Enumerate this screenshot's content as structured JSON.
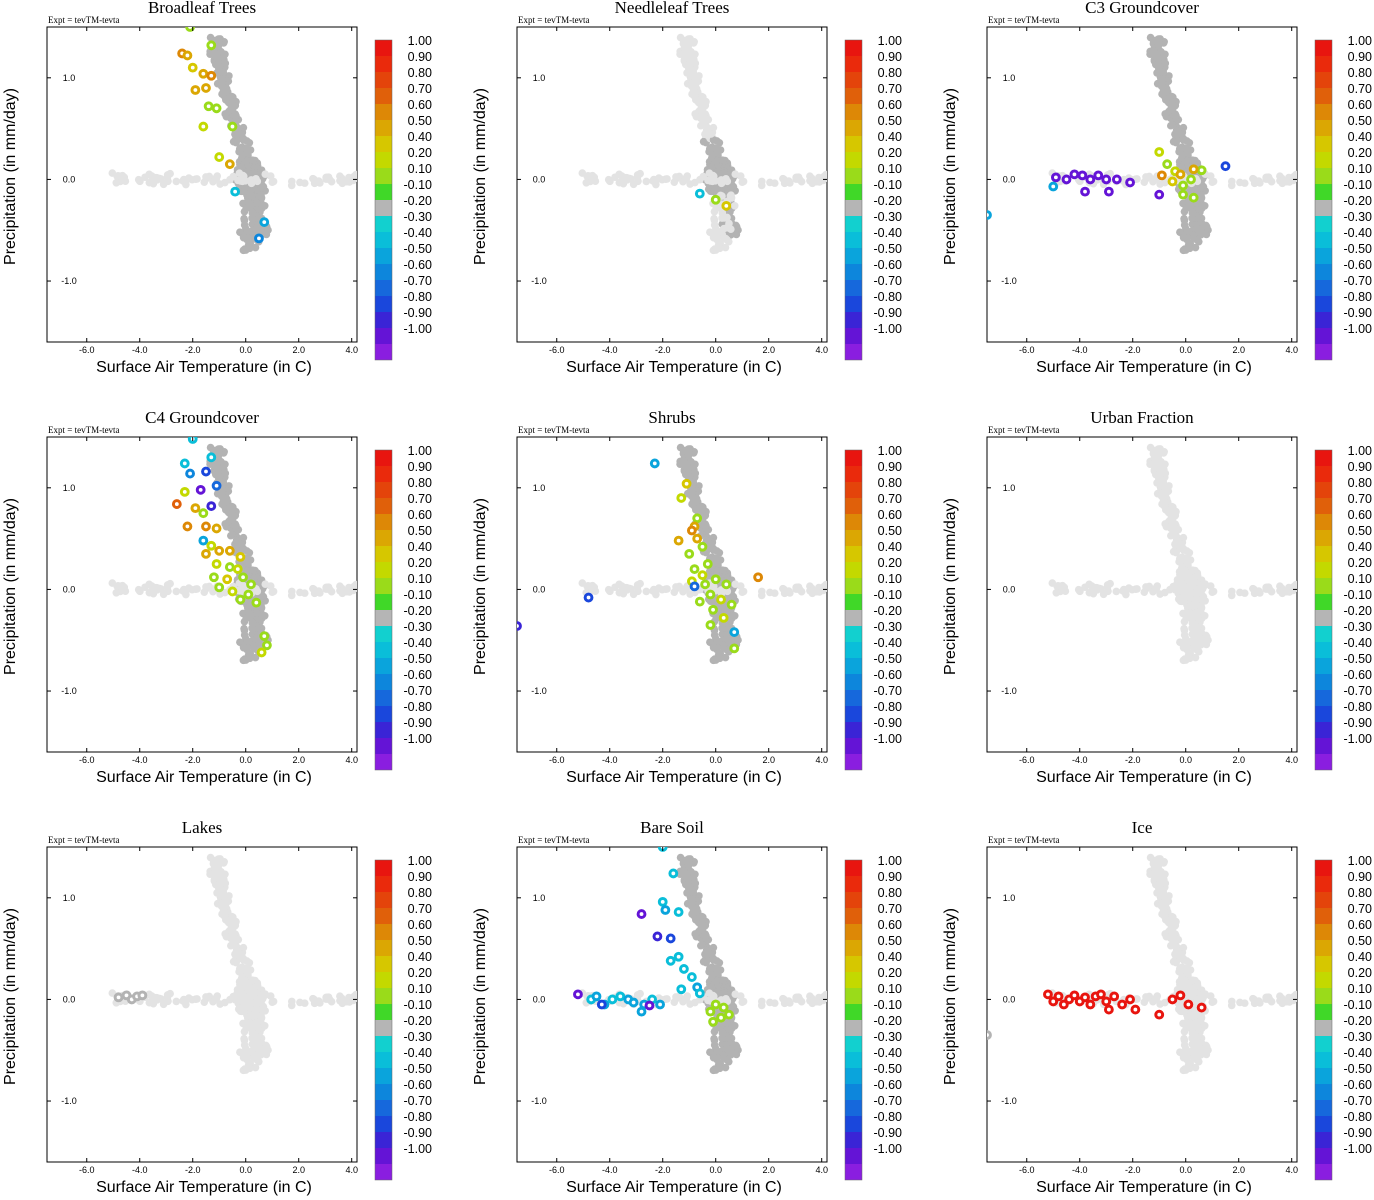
{
  "figure": {
    "expt_label": "Expt = tevTM-tevta",
    "xlabel": "Surface Air Temperature (in C)",
    "ylabel": "Precipitation (in mm/day)",
    "x_ticks": [
      "-6.0",
      "-4.0",
      "-2.0",
      "0.0",
      "2.0",
      "4.0"
    ],
    "y_ticks": [
      "1.0",
      "0.0",
      "-1.0"
    ]
  },
  "colorbar": {
    "labels": [
      "1.00",
      "0.90",
      "0.80",
      "0.70",
      "0.60",
      "0.50",
      "0.40",
      "0.20",
      "0.10",
      "-0.10",
      "-0.20",
      "-0.30",
      "-0.40",
      "-0.50",
      "-0.60",
      "-0.70",
      "-0.80",
      "-0.90",
      "-1.00"
    ],
    "colors": [
      "#e8150f",
      "#ea2a0c",
      "#e4440b",
      "#e0600a",
      "#dd8806",
      "#dba703",
      "#d6c700",
      "#c3d900",
      "#9adb1a",
      "#40d828",
      "#b5b5b5",
      "#12d0cf",
      "#0abed9",
      "#0aa4dc",
      "#0d86dc",
      "#1668dc",
      "#1a47dc",
      "#3a24d6",
      "#6414d6",
      "#8a1ee0"
    ]
  },
  "colors": {
    "background_points": "#e3e3e3",
    "neutral_points": "#b3b3b3"
  },
  "chart_data": [
    {
      "type": "scatter",
      "title": "Broadleaf Trees",
      "xlim": [
        -7.5,
        4.2
      ],
      "ylim": [
        -1.6,
        1.5
      ],
      "highlighted": [
        {
          "x": -2.1,
          "y": 1.5,
          "value": 0.15
        },
        {
          "x": -2.4,
          "y": 1.24,
          "value": 0.6
        },
        {
          "x": -2.2,
          "y": 1.22,
          "value": 0.45
        },
        {
          "x": -1.3,
          "y": 1.32,
          "value": 0.15
        },
        {
          "x": -2.0,
          "y": 1.1,
          "value": 0.4
        },
        {
          "x": -1.6,
          "y": 1.04,
          "value": 0.5
        },
        {
          "x": -1.3,
          "y": 1.02,
          "value": 0.6
        },
        {
          "x": -1.9,
          "y": 0.88,
          "value": 0.45
        },
        {
          "x": -1.5,
          "y": 0.9,
          "value": 0.45
        },
        {
          "x": -1.4,
          "y": 0.72,
          "value": 0.2
        },
        {
          "x": -1.1,
          "y": 0.7,
          "value": 0.15
        },
        {
          "x": -1.6,
          "y": 0.52,
          "value": 0.3
        },
        {
          "x": -0.5,
          "y": 0.52,
          "value": 0.15
        },
        {
          "x": -1.0,
          "y": 0.22,
          "value": 0.25
        },
        {
          "x": -0.6,
          "y": 0.15,
          "value": 0.45
        },
        {
          "x": -0.4,
          "y": -0.12,
          "value": -0.25
        },
        {
          "x": 0.7,
          "y": -0.42,
          "value": -0.35
        },
        {
          "x": 0.5,
          "y": -0.58,
          "value": -0.45
        }
      ]
    },
    {
      "type": "scatter",
      "title": "Needleleaf Trees",
      "xlim": [
        -7.5,
        4.2
      ],
      "ylim": [
        -1.6,
        1.5
      ],
      "highlighted": [
        {
          "x": -0.6,
          "y": -0.14,
          "value": -0.25
        },
        {
          "x": 0.0,
          "y": -0.2,
          "value": 0.15
        },
        {
          "x": 0.4,
          "y": -0.26,
          "value": 0.4
        }
      ]
    },
    {
      "type": "scatter",
      "title": "C3 Groundcover",
      "xlim": [
        -7.5,
        4.2
      ],
      "ylim": [
        -1.6,
        1.5
      ],
      "highlighted": [
        {
          "x": -4.9,
          "y": 0.02,
          "value": -0.85
        },
        {
          "x": -4.5,
          "y": 0.0,
          "value": -0.85
        },
        {
          "x": -4.2,
          "y": 0.05,
          "value": -0.85
        },
        {
          "x": -3.9,
          "y": 0.04,
          "value": -0.85
        },
        {
          "x": -3.6,
          "y": 0.0,
          "value": -0.85
        },
        {
          "x": -3.3,
          "y": 0.04,
          "value": -0.85
        },
        {
          "x": -3.0,
          "y": 0.0,
          "value": -0.85
        },
        {
          "x": -2.6,
          "y": 0.0,
          "value": -0.85
        },
        {
          "x": -2.1,
          "y": -0.03,
          "value": -0.85
        },
        {
          "x": -3.8,
          "y": -0.12,
          "value": -0.85
        },
        {
          "x": -2.9,
          "y": -0.12,
          "value": -0.85
        },
        {
          "x": -5.0,
          "y": -0.07,
          "value": -0.3
        },
        {
          "x": -7.5,
          "y": -0.35,
          "value": -0.35
        },
        {
          "x": -1.0,
          "y": 0.27,
          "value": 0.3
        },
        {
          "x": -0.7,
          "y": 0.15,
          "value": 0.15
        },
        {
          "x": -0.9,
          "y": 0.04,
          "value": 0.55
        },
        {
          "x": -0.4,
          "y": 0.08,
          "value": 0.25
        },
        {
          "x": -0.2,
          "y": 0.05,
          "value": 0.45
        },
        {
          "x": -0.5,
          "y": -0.02,
          "value": 0.35
        },
        {
          "x": -0.1,
          "y": -0.06,
          "value": 0.2
        },
        {
          "x": 0.2,
          "y": 0.0,
          "value": 0.15
        },
        {
          "x": 0.6,
          "y": 0.09,
          "value": 0.15
        },
        {
          "x": 1.5,
          "y": 0.13,
          "value": -0.6
        },
        {
          "x": -0.1,
          "y": -0.15,
          "value": 0.15
        },
        {
          "x": -1.0,
          "y": -0.15,
          "value": -0.85
        },
        {
          "x": 0.3,
          "y": -0.18,
          "value": 0.15
        },
        {
          "x": 0.3,
          "y": 0.1,
          "value": 0.5
        }
      ]
    },
    {
      "type": "scatter",
      "title": "C4 Groundcover",
      "xlim": [
        -7.5,
        4.2
      ],
      "ylim": [
        -1.6,
        1.5
      ],
      "highlighted": [
        {
          "x": -2.0,
          "y": 1.48,
          "value": -0.25
        },
        {
          "x": -2.3,
          "y": 1.24,
          "value": -0.25
        },
        {
          "x": -2.1,
          "y": 1.14,
          "value": -0.4
        },
        {
          "x": -1.3,
          "y": 1.3,
          "value": -0.25
        },
        {
          "x": -1.5,
          "y": 1.16,
          "value": -0.6
        },
        {
          "x": -1.1,
          "y": 1.02,
          "value": -0.5
        },
        {
          "x": -2.3,
          "y": 0.96,
          "value": 0.3
        },
        {
          "x": -1.7,
          "y": 0.98,
          "value": -0.8
        },
        {
          "x": -1.3,
          "y": 0.82,
          "value": -0.7
        },
        {
          "x": -2.6,
          "y": 0.84,
          "value": 0.65
        },
        {
          "x": -1.9,
          "y": 0.8,
          "value": 0.45
        },
        {
          "x": -1.6,
          "y": 0.75,
          "value": 0.15
        },
        {
          "x": -2.2,
          "y": 0.62,
          "value": 0.6
        },
        {
          "x": -1.5,
          "y": 0.62,
          "value": 0.6
        },
        {
          "x": -1.1,
          "y": 0.6,
          "value": 0.45
        },
        {
          "x": -1.6,
          "y": 0.48,
          "value": -0.3
        },
        {
          "x": -1.3,
          "y": 0.43,
          "value": 0.3
        },
        {
          "x": -1.0,
          "y": 0.38,
          "value": 0.45
        },
        {
          "x": -0.6,
          "y": 0.38,
          "value": 0.45
        },
        {
          "x": -1.5,
          "y": 0.35,
          "value": 0.45
        },
        {
          "x": -0.2,
          "y": 0.32,
          "value": 0.4
        },
        {
          "x": -1.1,
          "y": 0.25,
          "value": 0.3
        },
        {
          "x": -0.6,
          "y": 0.22,
          "value": 0.15
        },
        {
          "x": -0.3,
          "y": 0.2,
          "value": 0.3
        },
        {
          "x": -1.2,
          "y": 0.12,
          "value": 0.15
        },
        {
          "x": -0.7,
          "y": 0.1,
          "value": 0.35
        },
        {
          "x": -0.1,
          "y": 0.12,
          "value": 0.15
        },
        {
          "x": 0.2,
          "y": 0.05,
          "value": 0.15
        },
        {
          "x": -1.0,
          "y": 0.02,
          "value": 0.15
        },
        {
          "x": -0.5,
          "y": -0.02,
          "value": 0.3
        },
        {
          "x": 0.1,
          "y": -0.05,
          "value": 0.15
        },
        {
          "x": 0.4,
          "y": -0.13,
          "value": 0.15
        },
        {
          "x": -0.2,
          "y": -0.1,
          "value": 0.2
        },
        {
          "x": 0.7,
          "y": -0.46,
          "value": 0.15
        },
        {
          "x": 0.8,
          "y": -0.55,
          "value": 0.15
        },
        {
          "x": 0.6,
          "y": -0.62,
          "value": 0.3
        }
      ]
    },
    {
      "type": "scatter",
      "title": "Shrubs",
      "xlim": [
        -7.5,
        4.2
      ],
      "ylim": [
        -1.6,
        1.5
      ],
      "highlighted": [
        {
          "x": -2.3,
          "y": 1.24,
          "value": -0.3
        },
        {
          "x": -1.1,
          "y": 1.04,
          "value": 0.4
        },
        {
          "x": -1.3,
          "y": 0.9,
          "value": 0.3
        },
        {
          "x": -0.7,
          "y": 0.7,
          "value": 0.2
        },
        {
          "x": -0.8,
          "y": 0.62,
          "value": 0.45
        },
        {
          "x": -0.9,
          "y": 0.58,
          "value": 0.55
        },
        {
          "x": -1.4,
          "y": 0.48,
          "value": 0.45
        },
        {
          "x": -0.7,
          "y": 0.5,
          "value": 0.45
        },
        {
          "x": -0.5,
          "y": 0.42,
          "value": 0.2
        },
        {
          "x": -1.0,
          "y": 0.35,
          "value": 0.15
        },
        {
          "x": -0.3,
          "y": 0.25,
          "value": 0.2
        },
        {
          "x": -0.8,
          "y": 0.2,
          "value": 0.15
        },
        {
          "x": -0.5,
          "y": 0.14,
          "value": 0.3
        },
        {
          "x": 0.0,
          "y": 0.1,
          "value": 0.2
        },
        {
          "x": -0.9,
          "y": 0.08,
          "value": 0.3
        },
        {
          "x": -0.4,
          "y": 0.05,
          "value": 0.15
        },
        {
          "x": 0.4,
          "y": 0.05,
          "value": 0.15
        },
        {
          "x": 1.6,
          "y": 0.12,
          "value": 0.55
        },
        {
          "x": -0.8,
          "y": 0.03,
          "value": -0.55
        },
        {
          "x": -0.2,
          "y": -0.05,
          "value": 0.2
        },
        {
          "x": 0.2,
          "y": -0.1,
          "value": 0.3
        },
        {
          "x": -0.6,
          "y": -0.12,
          "value": 0.15
        },
        {
          "x": 0.6,
          "y": -0.15,
          "value": 0.15
        },
        {
          "x": -0.1,
          "y": -0.2,
          "value": 0.15
        },
        {
          "x": 0.3,
          "y": -0.28,
          "value": 0.25
        },
        {
          "x": -0.2,
          "y": -0.35,
          "value": 0.15
        },
        {
          "x": 0.7,
          "y": -0.42,
          "value": -0.3
        },
        {
          "x": 0.7,
          "y": -0.58,
          "value": 0.2
        },
        {
          "x": -4.8,
          "y": -0.08,
          "value": -0.6
        },
        {
          "x": -7.5,
          "y": -0.36,
          "value": -0.75
        }
      ]
    },
    {
      "type": "scatter",
      "title": "Urban Fraction",
      "xlim": [
        -7.5,
        4.2
      ],
      "ylim": [
        -1.6,
        1.5
      ],
      "highlighted": []
    },
    {
      "type": "scatter",
      "title": "Lakes",
      "xlim": [
        -7.5,
        4.2
      ],
      "ylim": [
        -1.6,
        1.5
      ],
      "highlighted": [
        {
          "x": -4.8,
          "y": 0.02,
          "value": 0.0
        },
        {
          "x": -4.5,
          "y": 0.04,
          "value": 0.0
        },
        {
          "x": -4.3,
          "y": 0.0,
          "value": 0.0
        },
        {
          "x": -4.1,
          "y": 0.03,
          "value": 0.0
        },
        {
          "x": -3.9,
          "y": 0.04,
          "value": 0.0
        }
      ]
    },
    {
      "type": "scatter",
      "title": "Bare Soil",
      "xlim": [
        -7.5,
        4.2
      ],
      "ylim": [
        -1.6,
        1.5
      ],
      "highlighted": [
        {
          "x": -2.0,
          "y": 1.5,
          "value": -0.25
        },
        {
          "x": -1.6,
          "y": 1.24,
          "value": -0.25
        },
        {
          "x": -2.0,
          "y": 0.96,
          "value": -0.25
        },
        {
          "x": -2.8,
          "y": 0.84,
          "value": -0.8
        },
        {
          "x": -1.4,
          "y": 0.86,
          "value": -0.25
        },
        {
          "x": -1.9,
          "y": 0.88,
          "value": -0.3
        },
        {
          "x": -2.2,
          "y": 0.62,
          "value": -0.7
        },
        {
          "x": -1.7,
          "y": 0.6,
          "value": -0.6
        },
        {
          "x": -1.4,
          "y": 0.42,
          "value": -0.25
        },
        {
          "x": -1.7,
          "y": 0.38,
          "value": -0.25
        },
        {
          "x": -1.2,
          "y": 0.3,
          "value": -0.25
        },
        {
          "x": -0.9,
          "y": 0.22,
          "value": -0.25
        },
        {
          "x": -1.3,
          "y": 0.1,
          "value": -0.25
        },
        {
          "x": -0.7,
          "y": 0.12,
          "value": -0.3
        },
        {
          "x": -0.6,
          "y": 0.06,
          "value": -0.25
        },
        {
          "x": -5.2,
          "y": 0.05,
          "value": -0.85
        },
        {
          "x": -4.7,
          "y": 0.0,
          "value": -0.25
        },
        {
          "x": -4.5,
          "y": 0.03,
          "value": -0.3
        },
        {
          "x": -4.2,
          "y": -0.05,
          "value": -0.3
        },
        {
          "x": -3.9,
          "y": 0.0,
          "value": -0.25
        },
        {
          "x": -3.6,
          "y": 0.03,
          "value": -0.25
        },
        {
          "x": -3.3,
          "y": 0.0,
          "value": -0.3
        },
        {
          "x": -3.1,
          "y": -0.03,
          "value": -0.3
        },
        {
          "x": -2.7,
          "y": -0.05,
          "value": -0.3
        },
        {
          "x": -2.4,
          "y": 0.0,
          "value": -0.25
        },
        {
          "x": -2.1,
          "y": -0.05,
          "value": -0.3
        },
        {
          "x": -2.8,
          "y": -0.12,
          "value": -0.35
        },
        {
          "x": -2.5,
          "y": -0.06,
          "value": -0.8
        },
        {
          "x": -4.3,
          "y": -0.05,
          "value": -0.6
        },
        {
          "x": 0.0,
          "y": -0.05,
          "value": 0.15
        },
        {
          "x": 0.3,
          "y": -0.08,
          "value": 0.15
        },
        {
          "x": -0.2,
          "y": -0.12,
          "value": 0.15
        },
        {
          "x": 0.2,
          "y": -0.18,
          "value": 0.2
        },
        {
          "x": 0.5,
          "y": -0.15,
          "value": 0.15
        },
        {
          "x": -0.1,
          "y": -0.22,
          "value": 0.15
        }
      ]
    },
    {
      "type": "scatter",
      "title": "Ice",
      "xlim": [
        -7.5,
        4.2
      ],
      "ylim": [
        -1.6,
        1.5
      ],
      "highlighted": [
        {
          "x": -5.2,
          "y": 0.05,
          "value": 0.95
        },
        {
          "x": -5.0,
          "y": -0.02,
          "value": 0.95
        },
        {
          "x": -4.8,
          "y": 0.03,
          "value": 0.95
        },
        {
          "x": -4.6,
          "y": -0.05,
          "value": 0.95
        },
        {
          "x": -4.4,
          "y": 0.0,
          "value": 0.95
        },
        {
          "x": -4.2,
          "y": 0.04,
          "value": 0.95
        },
        {
          "x": -4.0,
          "y": -0.02,
          "value": 0.95
        },
        {
          "x": -3.8,
          "y": 0.02,
          "value": 0.95
        },
        {
          "x": -3.6,
          "y": -0.05,
          "value": 0.95
        },
        {
          "x": -3.4,
          "y": 0.03,
          "value": 0.95
        },
        {
          "x": -3.2,
          "y": 0.05,
          "value": 0.95
        },
        {
          "x": -3.0,
          "y": -0.02,
          "value": 0.95
        },
        {
          "x": -2.9,
          "y": -0.1,
          "value": 0.95
        },
        {
          "x": -2.7,
          "y": 0.03,
          "value": 0.95
        },
        {
          "x": -2.4,
          "y": -0.05,
          "value": 0.95
        },
        {
          "x": -2.1,
          "y": 0.0,
          "value": 0.95
        },
        {
          "x": -1.9,
          "y": -0.1,
          "value": 0.95
        },
        {
          "x": -1.0,
          "y": -0.15,
          "value": 0.95
        },
        {
          "x": -0.5,
          "y": 0.0,
          "value": 0.95
        },
        {
          "x": -0.2,
          "y": 0.04,
          "value": 0.95
        },
        {
          "x": 0.1,
          "y": -0.05,
          "value": 0.95
        },
        {
          "x": 0.6,
          "y": -0.08,
          "value": 0.95
        },
        {
          "x": -7.5,
          "y": -0.35,
          "value": 0.0
        }
      ]
    }
  ]
}
